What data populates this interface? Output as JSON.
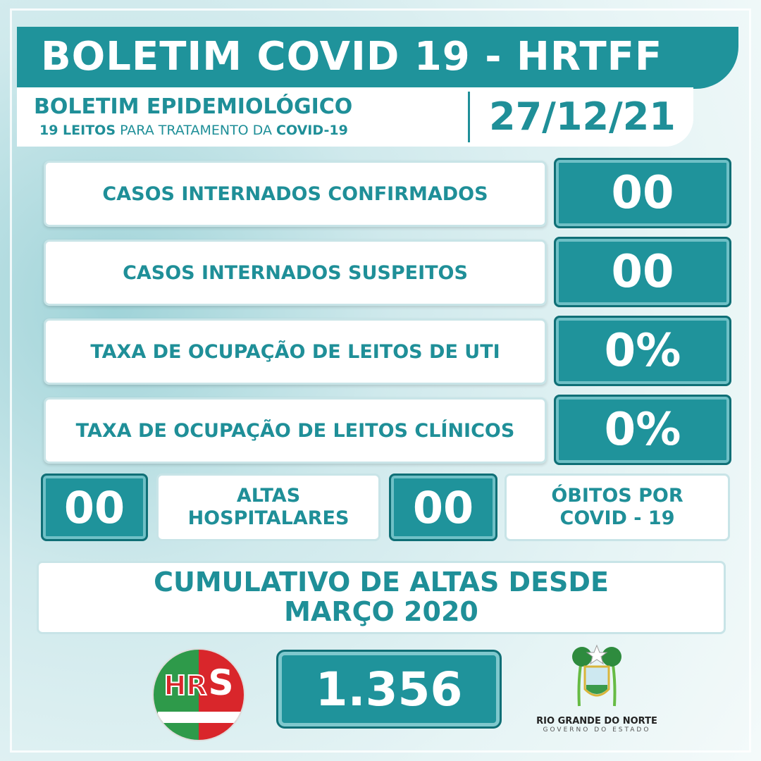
{
  "header": {
    "title": "BOLETIM COVID 19 - HRTFF",
    "subtitle": "BOLETIM EPIDEMIOLÓGICO",
    "beds_count": "19 LEITOS",
    "beds_text": "PARA TRATAMENTO DA",
    "beds_suffix": "COVID-19",
    "date": "27/12/21"
  },
  "rows": [
    {
      "label": "CASOS INTERNADOS CONFIRMADOS",
      "value": "00"
    },
    {
      "label": "CASOS INTERNADOS SUSPEITOS",
      "value": "00"
    },
    {
      "label": "TAXA DE OCUPAÇÃO DE LEITOS DE UTI",
      "value": "0%"
    },
    {
      "label": "TAXA DE OCUPAÇÃO DE LEITOS CLÍNICOS",
      "value": "0%"
    }
  ],
  "altas": {
    "value": "00",
    "line1": "ALTAS",
    "line2": "HOSPITALARES"
  },
  "obitos": {
    "value": "00",
    "line1": "ÓBITOS POR",
    "line2": "COVID - 19"
  },
  "cumulative": {
    "line1": "CUMULATIVO DE ALTAS DESDE",
    "line2": "MARÇO 2020",
    "value": "1.356"
  },
  "logos": {
    "hospital": "HRS",
    "state_name": "RIO GRANDE DO NORTE",
    "state_sub": "GOVERNO DO ESTADO"
  },
  "colors": {
    "teal": "#1f939b",
    "text_teal": "#1f8f98"
  }
}
